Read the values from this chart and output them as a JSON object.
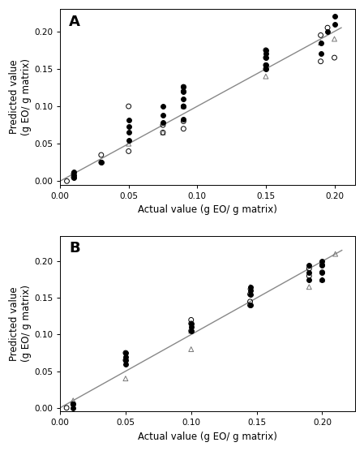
{
  "panel_A": {
    "label": "A",
    "filled_circles": {
      "x": [
        0.01,
        0.01,
        0.01,
        0.03,
        0.05,
        0.05,
        0.05,
        0.05,
        0.075,
        0.075,
        0.075,
        0.09,
        0.09,
        0.09,
        0.09,
        0.09,
        0.15,
        0.15,
        0.15,
        0.15,
        0.15,
        0.19,
        0.19,
        0.195,
        0.2,
        0.2
      ],
      "y": [
        0.005,
        0.008,
        0.012,
        0.025,
        0.055,
        0.065,
        0.073,
        0.082,
        0.078,
        0.088,
        0.1,
        0.083,
        0.1,
        0.11,
        0.12,
        0.126,
        0.15,
        0.155,
        0.165,
        0.17,
        0.175,
        0.17,
        0.185,
        0.2,
        0.21,
        0.22
      ]
    },
    "open_circles": {
      "x": [
        0.005,
        0.01,
        0.01,
        0.03,
        0.03,
        0.05,
        0.05,
        0.075,
        0.075,
        0.09,
        0.09,
        0.09,
        0.09,
        0.09,
        0.15,
        0.15,
        0.15,
        0.15,
        0.19,
        0.19,
        0.195,
        0.2
      ],
      "y": [
        0.0,
        0.005,
        0.01,
        0.025,
        0.035,
        0.04,
        0.1,
        0.065,
        0.075,
        0.07,
        0.08,
        0.1,
        0.12,
        0.126,
        0.15,
        0.155,
        0.165,
        0.175,
        0.16,
        0.195,
        0.205,
        0.165
      ]
    },
    "triangles": {
      "x": [
        0.01,
        0.05,
        0.075,
        0.09,
        0.15,
        0.19,
        0.2
      ],
      "y": [
        0.01,
        0.05,
        0.065,
        0.1,
        0.14,
        0.185,
        0.19
      ]
    },
    "line_x": [
      0.0,
      0.205
    ],
    "line_y": [
      0.0,
      0.205
    ],
    "xlim": [
      0.0,
      0.215
    ],
    "ylim": [
      -0.005,
      0.23
    ],
    "xticks": [
      0.0,
      0.05,
      0.1,
      0.15,
      0.2
    ],
    "yticks": [
      0.0,
      0.05,
      0.1,
      0.15,
      0.2
    ],
    "xlabel": "Actual value (g EO/ g matrix)",
    "ylabel": "Predicted value (g EO/ g matrix)"
  },
  "panel_B": {
    "label": "B",
    "filled_circles": {
      "x": [
        0.01,
        0.01,
        0.05,
        0.05,
        0.05,
        0.05,
        0.1,
        0.1,
        0.1,
        0.145,
        0.145,
        0.145,
        0.145,
        0.19,
        0.19,
        0.19,
        0.2,
        0.2,
        0.2,
        0.2
      ],
      "y": [
        0.0,
        0.005,
        0.06,
        0.065,
        0.07,
        0.075,
        0.105,
        0.11,
        0.115,
        0.14,
        0.155,
        0.16,
        0.165,
        0.175,
        0.185,
        0.195,
        0.175,
        0.185,
        0.195,
        0.2
      ]
    },
    "open_circles": {
      "x": [
        0.005,
        0.01,
        0.05,
        0.05,
        0.1,
        0.1,
        0.1,
        0.145,
        0.145,
        0.145,
        0.19,
        0.19,
        0.2,
        0.2
      ],
      "y": [
        0.0,
        0.005,
        0.065,
        0.075,
        0.105,
        0.115,
        0.12,
        0.14,
        0.145,
        0.155,
        0.18,
        0.19,
        0.185,
        0.195
      ]
    },
    "triangles": {
      "x": [
        0.01,
        0.05,
        0.1,
        0.1,
        0.145,
        0.19,
        0.2,
        0.21
      ],
      "y": [
        0.01,
        0.04,
        0.08,
        0.105,
        0.165,
        0.165,
        0.175,
        0.21
      ]
    },
    "line_x": [
      0.0,
      0.215
    ],
    "line_y": [
      0.0,
      0.215
    ],
    "xlim": [
      0.0,
      0.225
    ],
    "ylim": [
      -0.005,
      0.235
    ],
    "xticks": [
      0.0,
      0.05,
      0.1,
      0.15,
      0.2
    ],
    "yticks": [
      0.0,
      0.05,
      0.1,
      0.15,
      0.2
    ],
    "xlabel": "Actual value (g EO/ g matrix)",
    "ylabel": "Predicted value (g EO/ g matrix)"
  },
  "marker_size": 18,
  "line_color": "#888888",
  "filled_color": "#000000",
  "open_color": "#000000",
  "triangle_color": "#777777",
  "background_color": "#ffffff",
  "tick_fontsize": 7.5,
  "label_fontsize": 8.5,
  "panel_label_fontsize": 13
}
